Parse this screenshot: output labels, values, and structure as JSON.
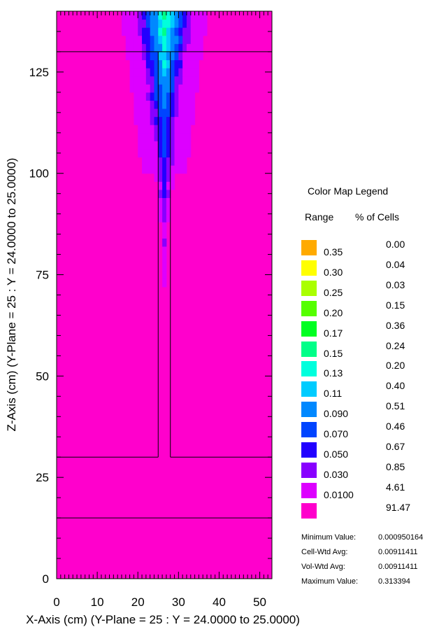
{
  "chart_data": {
    "type": "heatmap",
    "xlabel": "X-Axis (cm) (Y-Plane = 25 : Y = 24.0000 to 25.0000)",
    "ylabel": "Z-Axis (cm) (Y-Plane = 25 : Y = 24.0000 to 25.0000)",
    "xlim": [
      0,
      53
    ],
    "ylim": [
      0,
      140
    ],
    "x_ticks": [
      0,
      10,
      20,
      30,
      40,
      50
    ],
    "y_ticks": [
      0,
      25,
      50,
      75,
      100,
      125
    ],
    "background_color": "#ff00cc",
    "geometry_lines": [
      {
        "type": "horizontal",
        "y": 130
      },
      {
        "type": "horizontal",
        "y": 30,
        "segments": [
          [
            0,
            25
          ],
          [
            28,
            53
          ]
        ]
      },
      {
        "type": "horizontal",
        "y": 15
      },
      {
        "type": "vertical",
        "x": 25,
        "y_range": [
          30,
          130
        ]
      },
      {
        "type": "vertical",
        "x": 28,
        "y_range": [
          30,
          130
        ]
      }
    ],
    "plume_center_x": 26.5,
    "plume_profile": [
      {
        "z": 140,
        "level": 8
      },
      {
        "z": 125,
        "level": 6
      },
      {
        "z": 110,
        "level": 4
      },
      {
        "z": 100,
        "level": 3
      },
      {
        "z": 90,
        "level": 2
      },
      {
        "z": 80,
        "level": 1
      },
      {
        "z": 65,
        "level": 0
      }
    ]
  },
  "legend": {
    "title": "Color Map Legend",
    "range_header": "Range",
    "pct_header": "% of Cells",
    "items": [
      {
        "range": "",
        "pct": "0.00",
        "color": "#ffaa00"
      },
      {
        "range": "0.35",
        "pct": "0.04",
        "color": "#ffff00"
      },
      {
        "range": "0.30",
        "pct": "0.03",
        "color": "#aaff00"
      },
      {
        "range": "0.25",
        "pct": "0.15",
        "color": "#55ff00"
      },
      {
        "range": "0.20",
        "pct": "0.36",
        "color": "#00ff22"
      },
      {
        "range": "0.17",
        "pct": "0.24",
        "color": "#00ff88"
      },
      {
        "range": "0.15",
        "pct": "0.20",
        "color": "#00ffdd"
      },
      {
        "range": "0.13",
        "pct": "0.40",
        "color": "#00ccff"
      },
      {
        "range": "0.11",
        "pct": "0.51",
        "color": "#0088ff"
      },
      {
        "range": "0.090",
        "pct": "0.46",
        "color": "#0044ff"
      },
      {
        "range": "0.070",
        "pct": "0.67",
        "color": "#2200ff"
      },
      {
        "range": "0.050",
        "pct": "0.85",
        "color": "#8800ff"
      },
      {
        "range": "0.030",
        "pct": "4.61",
        "color": "#dd00ff"
      },
      {
        "range": "0.0100",
        "pct": "91.47",
        "color": "#ff00cc"
      }
    ]
  },
  "stats": [
    {
      "label": "Minimum Value:",
      "value": "0.000950164"
    },
    {
      "label": "Cell-Wtd Avg:",
      "value": "0.00911411"
    },
    {
      "label": "Vol-Wtd Avg:",
      "value": "0.00911411"
    },
    {
      "label": "Maximum Value:",
      "value": "0.313394"
    }
  ]
}
